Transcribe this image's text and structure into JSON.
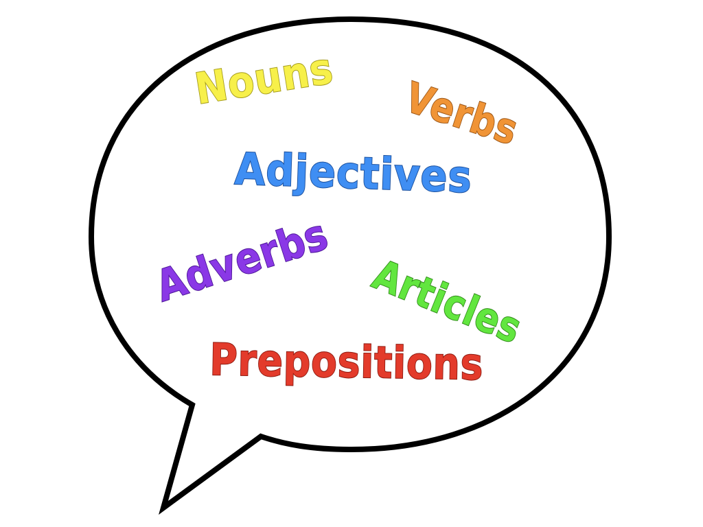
{
  "words": [
    {
      "id": "nouns",
      "text": "Nouns",
      "color": "#f7f04a",
      "stroke": "#a39a1b"
    },
    {
      "id": "verbs",
      "text": "Verbs",
      "color": "#f09436",
      "stroke": "#9a5414"
    },
    {
      "id": "adjectives",
      "text": "Adjectives",
      "color": "#3f8ef3",
      "stroke": "#1b4f9c"
    },
    {
      "id": "adverbs",
      "text": "Adverbs",
      "color": "#8a38e6",
      "stroke": "#4b1596"
    },
    {
      "id": "articles",
      "text": "Articles",
      "color": "#62e63f",
      "stroke": "#2f8a18"
    },
    {
      "id": "prepositions",
      "text": "Prepositions",
      "color": "#e33b2b",
      "stroke": "#8c1a10"
    }
  ],
  "bubble": {
    "fill": "#ffffff",
    "outline": "#000000"
  }
}
